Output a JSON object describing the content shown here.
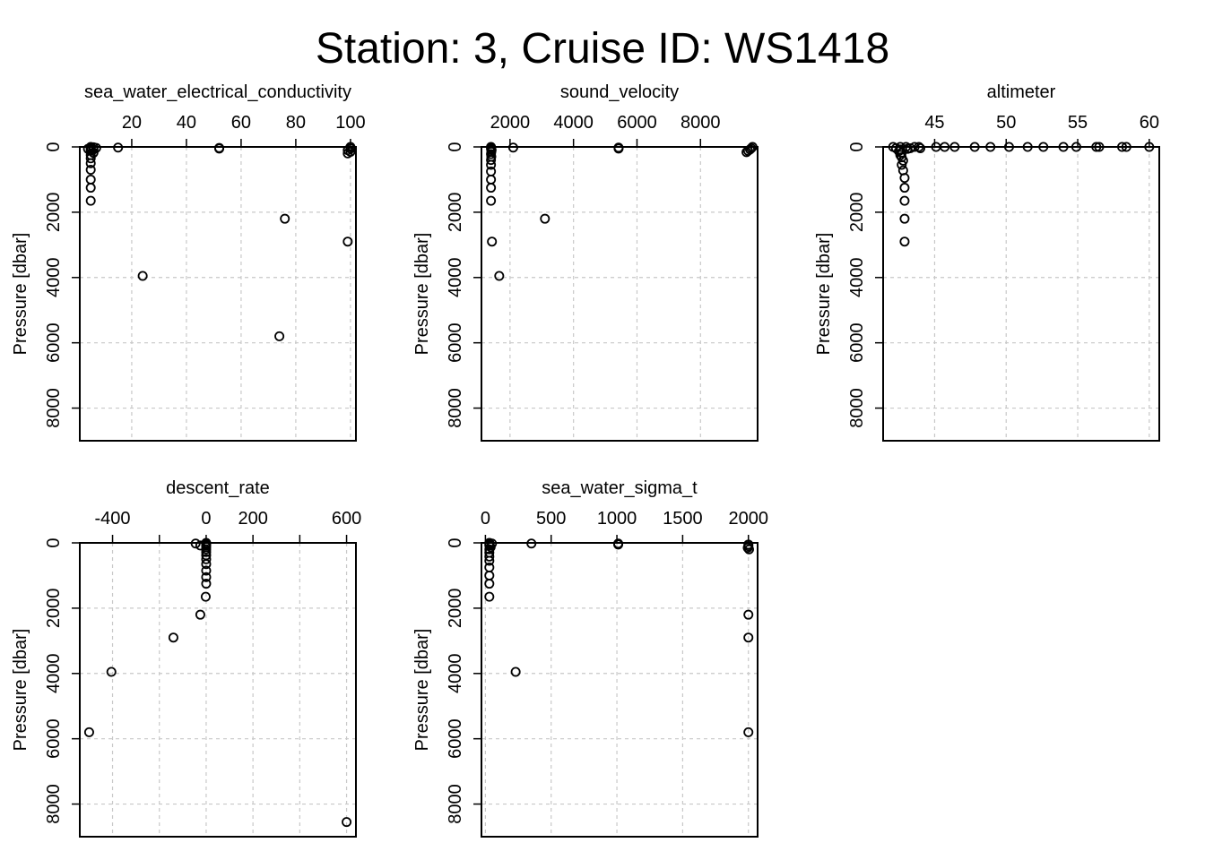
{
  "title": "Station: 3, Cruise ID: WS1418",
  "chart_data": [
    {
      "type": "scatter",
      "title": "sea_water_electrical_conductivity",
      "ylabel": "Pressure [dbar]",
      "xlim": [
        1,
        102
      ],
      "ylim": [
        0,
        9000
      ],
      "x_ticks": [
        20,
        40,
        60,
        80,
        100
      ],
      "x_tick_labels": [
        "20",
        "40",
        "60",
        "80",
        "100"
      ],
      "y_ticks": [
        0,
        2000,
        4000,
        6000,
        8000
      ],
      "y_tick_labels": [
        "0",
        "2000",
        "4000",
        "6000",
        "8000"
      ],
      "y_reversed": true,
      "grid": true,
      "points": [
        {
          "x": 5,
          "y": 0
        },
        {
          "x": 5,
          "y": 20
        },
        {
          "x": 5,
          "y": 50
        },
        {
          "x": 6,
          "y": 80
        },
        {
          "x": 5,
          "y": 120
        },
        {
          "x": 6,
          "y": 180
        },
        {
          "x": 5,
          "y": 250
        },
        {
          "x": 5,
          "y": 350
        },
        {
          "x": 5,
          "y": 500
        },
        {
          "x": 5,
          "y": 700
        },
        {
          "x": 5,
          "y": 1000
        },
        {
          "x": 5,
          "y": 1250
        },
        {
          "x": 5,
          "y": 1650
        },
        {
          "x": 6,
          "y": 10
        },
        {
          "x": 4,
          "y": 60
        },
        {
          "x": 7,
          "y": 30
        },
        {
          "x": 15,
          "y": 20
        },
        {
          "x": 52,
          "y": 30
        },
        {
          "x": 52,
          "y": 50
        },
        {
          "x": 100,
          "y": 0
        },
        {
          "x": 100,
          "y": 50
        },
        {
          "x": 99,
          "y": 100
        },
        {
          "x": 100,
          "y": 150
        },
        {
          "x": 99,
          "y": 200
        },
        {
          "x": 76,
          "y": 2200
        },
        {
          "x": 99,
          "y": 2900
        },
        {
          "x": 24,
          "y": 3950
        },
        {
          "x": 74,
          "y": 5800
        }
      ]
    },
    {
      "type": "scatter",
      "title": "sound_velocity",
      "ylabel": "Pressure [dbar]",
      "xlim": [
        1100,
        9800
      ],
      "ylim": [
        0,
        9000
      ],
      "x_ticks": [
        2000,
        4000,
        6000,
        8000
      ],
      "x_tick_labels": [
        "2000",
        "4000",
        "6000",
        "8000"
      ],
      "y_ticks": [
        0,
        2000,
        4000,
        6000,
        8000
      ],
      "y_tick_labels": [
        "0",
        "2000",
        "4000",
        "6000",
        "8000"
      ],
      "y_reversed": true,
      "grid": true,
      "points": [
        {
          "x": 1400,
          "y": 0
        },
        {
          "x": 1410,
          "y": 30
        },
        {
          "x": 1400,
          "y": 60
        },
        {
          "x": 1420,
          "y": 100
        },
        {
          "x": 1410,
          "y": 150
        },
        {
          "x": 1400,
          "y": 220
        },
        {
          "x": 1410,
          "y": 300
        },
        {
          "x": 1400,
          "y": 400
        },
        {
          "x": 1400,
          "y": 550
        },
        {
          "x": 1400,
          "y": 750
        },
        {
          "x": 1400,
          "y": 1000
        },
        {
          "x": 1400,
          "y": 1250
        },
        {
          "x": 1400,
          "y": 1650
        },
        {
          "x": 2100,
          "y": 20
        },
        {
          "x": 5420,
          "y": 20
        },
        {
          "x": 5420,
          "y": 50
        },
        {
          "x": 9640,
          "y": 0
        },
        {
          "x": 9600,
          "y": 40
        },
        {
          "x": 9560,
          "y": 80
        },
        {
          "x": 9500,
          "y": 120
        },
        {
          "x": 9450,
          "y": 160
        },
        {
          "x": 3100,
          "y": 2200
        },
        {
          "x": 1430,
          "y": 2900
        },
        {
          "x": 1660,
          "y": 3950
        }
      ]
    },
    {
      "type": "scatter",
      "title": "altimeter",
      "ylabel": "Pressure [dbar]",
      "xlim": [
        41.4,
        60.7
      ],
      "ylim": [
        0,
        9000
      ],
      "x_ticks": [
        45,
        50,
        55,
        60
      ],
      "x_tick_labels": [
        "45",
        "50",
        "55",
        "60"
      ],
      "y_ticks": [
        0,
        2000,
        4000,
        6000,
        8000
      ],
      "y_tick_labels": [
        "0",
        "2000",
        "4000",
        "6000",
        "8000"
      ],
      "y_reversed": true,
      "grid": true,
      "points": [
        {
          "x": 42.1,
          "y": 0
        },
        {
          "x": 42.6,
          "y": 0
        },
        {
          "x": 43.0,
          "y": 0
        },
        {
          "x": 43.6,
          "y": 0
        },
        {
          "x": 43.9,
          "y": 0
        },
        {
          "x": 45.1,
          "y": 0
        },
        {
          "x": 45.7,
          "y": 0
        },
        {
          "x": 46.4,
          "y": 0
        },
        {
          "x": 47.8,
          "y": 0
        },
        {
          "x": 48.9,
          "y": 0
        },
        {
          "x": 50.2,
          "y": 0
        },
        {
          "x": 51.5,
          "y": 0
        },
        {
          "x": 52.6,
          "y": 0
        },
        {
          "x": 54.0,
          "y": 0
        },
        {
          "x": 54.9,
          "y": 0
        },
        {
          "x": 56.3,
          "y": 0
        },
        {
          "x": 56.5,
          "y": 0
        },
        {
          "x": 58.1,
          "y": 0
        },
        {
          "x": 58.4,
          "y": 0
        },
        {
          "x": 60.0,
          "y": 0
        },
        {
          "x": 42.3,
          "y": 40
        },
        {
          "x": 42.6,
          "y": 80
        },
        {
          "x": 42.5,
          "y": 130
        },
        {
          "x": 42.7,
          "y": 180
        },
        {
          "x": 42.6,
          "y": 250
        },
        {
          "x": 42.7,
          "y": 320
        },
        {
          "x": 42.8,
          "y": 420
        },
        {
          "x": 42.7,
          "y": 550
        },
        {
          "x": 42.8,
          "y": 720
        },
        {
          "x": 43.3,
          "y": 40
        },
        {
          "x": 43.1,
          "y": 60
        },
        {
          "x": 44.0,
          "y": 40
        },
        {
          "x": 42.9,
          "y": 950
        },
        {
          "x": 42.9,
          "y": 1250
        },
        {
          "x": 42.9,
          "y": 1650
        },
        {
          "x": 42.9,
          "y": 2200
        },
        {
          "x": 42.9,
          "y": 2900
        }
      ]
    },
    {
      "type": "scatter",
      "title": "descent_rate",
      "ylabel": "Pressure [dbar]",
      "xlim": [
        -540,
        640
      ],
      "ylim": [
        0,
        9000
      ],
      "x_ticks": [
        -400,
        -200,
        0,
        200,
        400,
        600
      ],
      "x_tick_labels": [
        "-400",
        "",
        "0",
        "200",
        "",
        "600"
      ],
      "y_ticks": [
        0,
        2000,
        4000,
        6000,
        8000
      ],
      "y_tick_labels": [
        "0",
        "2000",
        "4000",
        "6000",
        "8000"
      ],
      "y_reversed": true,
      "grid": true,
      "points": [
        {
          "x": 0,
          "y": 0
        },
        {
          "x": 0,
          "y": 40
        },
        {
          "x": 0,
          "y": 80
        },
        {
          "x": 0,
          "y": 130
        },
        {
          "x": 0,
          "y": 200
        },
        {
          "x": 0,
          "y": 280
        },
        {
          "x": 0,
          "y": 380
        },
        {
          "x": 0,
          "y": 500
        },
        {
          "x": 0,
          "y": 650
        },
        {
          "x": 0,
          "y": 850
        },
        {
          "x": 0,
          "y": 1050
        },
        {
          "x": 0,
          "y": 1250
        },
        {
          "x": -2,
          "y": 1650
        },
        {
          "x": -45,
          "y": 20
        },
        {
          "x": -25,
          "y": 80
        },
        {
          "x": -25,
          "y": 2200
        },
        {
          "x": -140,
          "y": 2900
        },
        {
          "x": -405,
          "y": 3950
        },
        {
          "x": -500,
          "y": 5800
        },
        {
          "x": 600,
          "y": 8550
        }
      ]
    },
    {
      "type": "scatter",
      "title": "sea_water_sigma_t",
      "ylabel": "Pressure [dbar]",
      "xlim": [
        -30,
        2070
      ],
      "ylim": [
        0,
        9000
      ],
      "x_ticks": [
        0,
        500,
        1000,
        1500,
        2000
      ],
      "x_tick_labels": [
        "0",
        "500",
        "1000",
        "1500",
        "2000"
      ],
      "y_ticks": [
        0,
        2000,
        4000,
        6000,
        8000
      ],
      "y_tick_labels": [
        "0",
        "2000",
        "4000",
        "6000",
        "8000"
      ],
      "y_reversed": true,
      "grid": true,
      "points": [
        {
          "x": 30,
          "y": 0
        },
        {
          "x": 30,
          "y": 40
        },
        {
          "x": 30,
          "y": 80
        },
        {
          "x": 40,
          "y": 130
        },
        {
          "x": 30,
          "y": 200
        },
        {
          "x": 30,
          "y": 300
        },
        {
          "x": 30,
          "y": 420
        },
        {
          "x": 30,
          "y": 550
        },
        {
          "x": 30,
          "y": 750
        },
        {
          "x": 30,
          "y": 1000
        },
        {
          "x": 30,
          "y": 1250
        },
        {
          "x": 30,
          "y": 1650
        },
        {
          "x": 50,
          "y": 20
        },
        {
          "x": 350,
          "y": 20
        },
        {
          "x": 1010,
          "y": 20
        },
        {
          "x": 1010,
          "y": 50
        },
        {
          "x": 2000,
          "y": 50
        },
        {
          "x": 2000,
          "y": 100
        },
        {
          "x": 1995,
          "y": 150
        },
        {
          "x": 2005,
          "y": 200
        },
        {
          "x": 2000,
          "y": 2200
        },
        {
          "x": 2000,
          "y": 2900
        },
        {
          "x": 230,
          "y": 3950
        },
        {
          "x": 2000,
          "y": 5800
        }
      ]
    }
  ]
}
